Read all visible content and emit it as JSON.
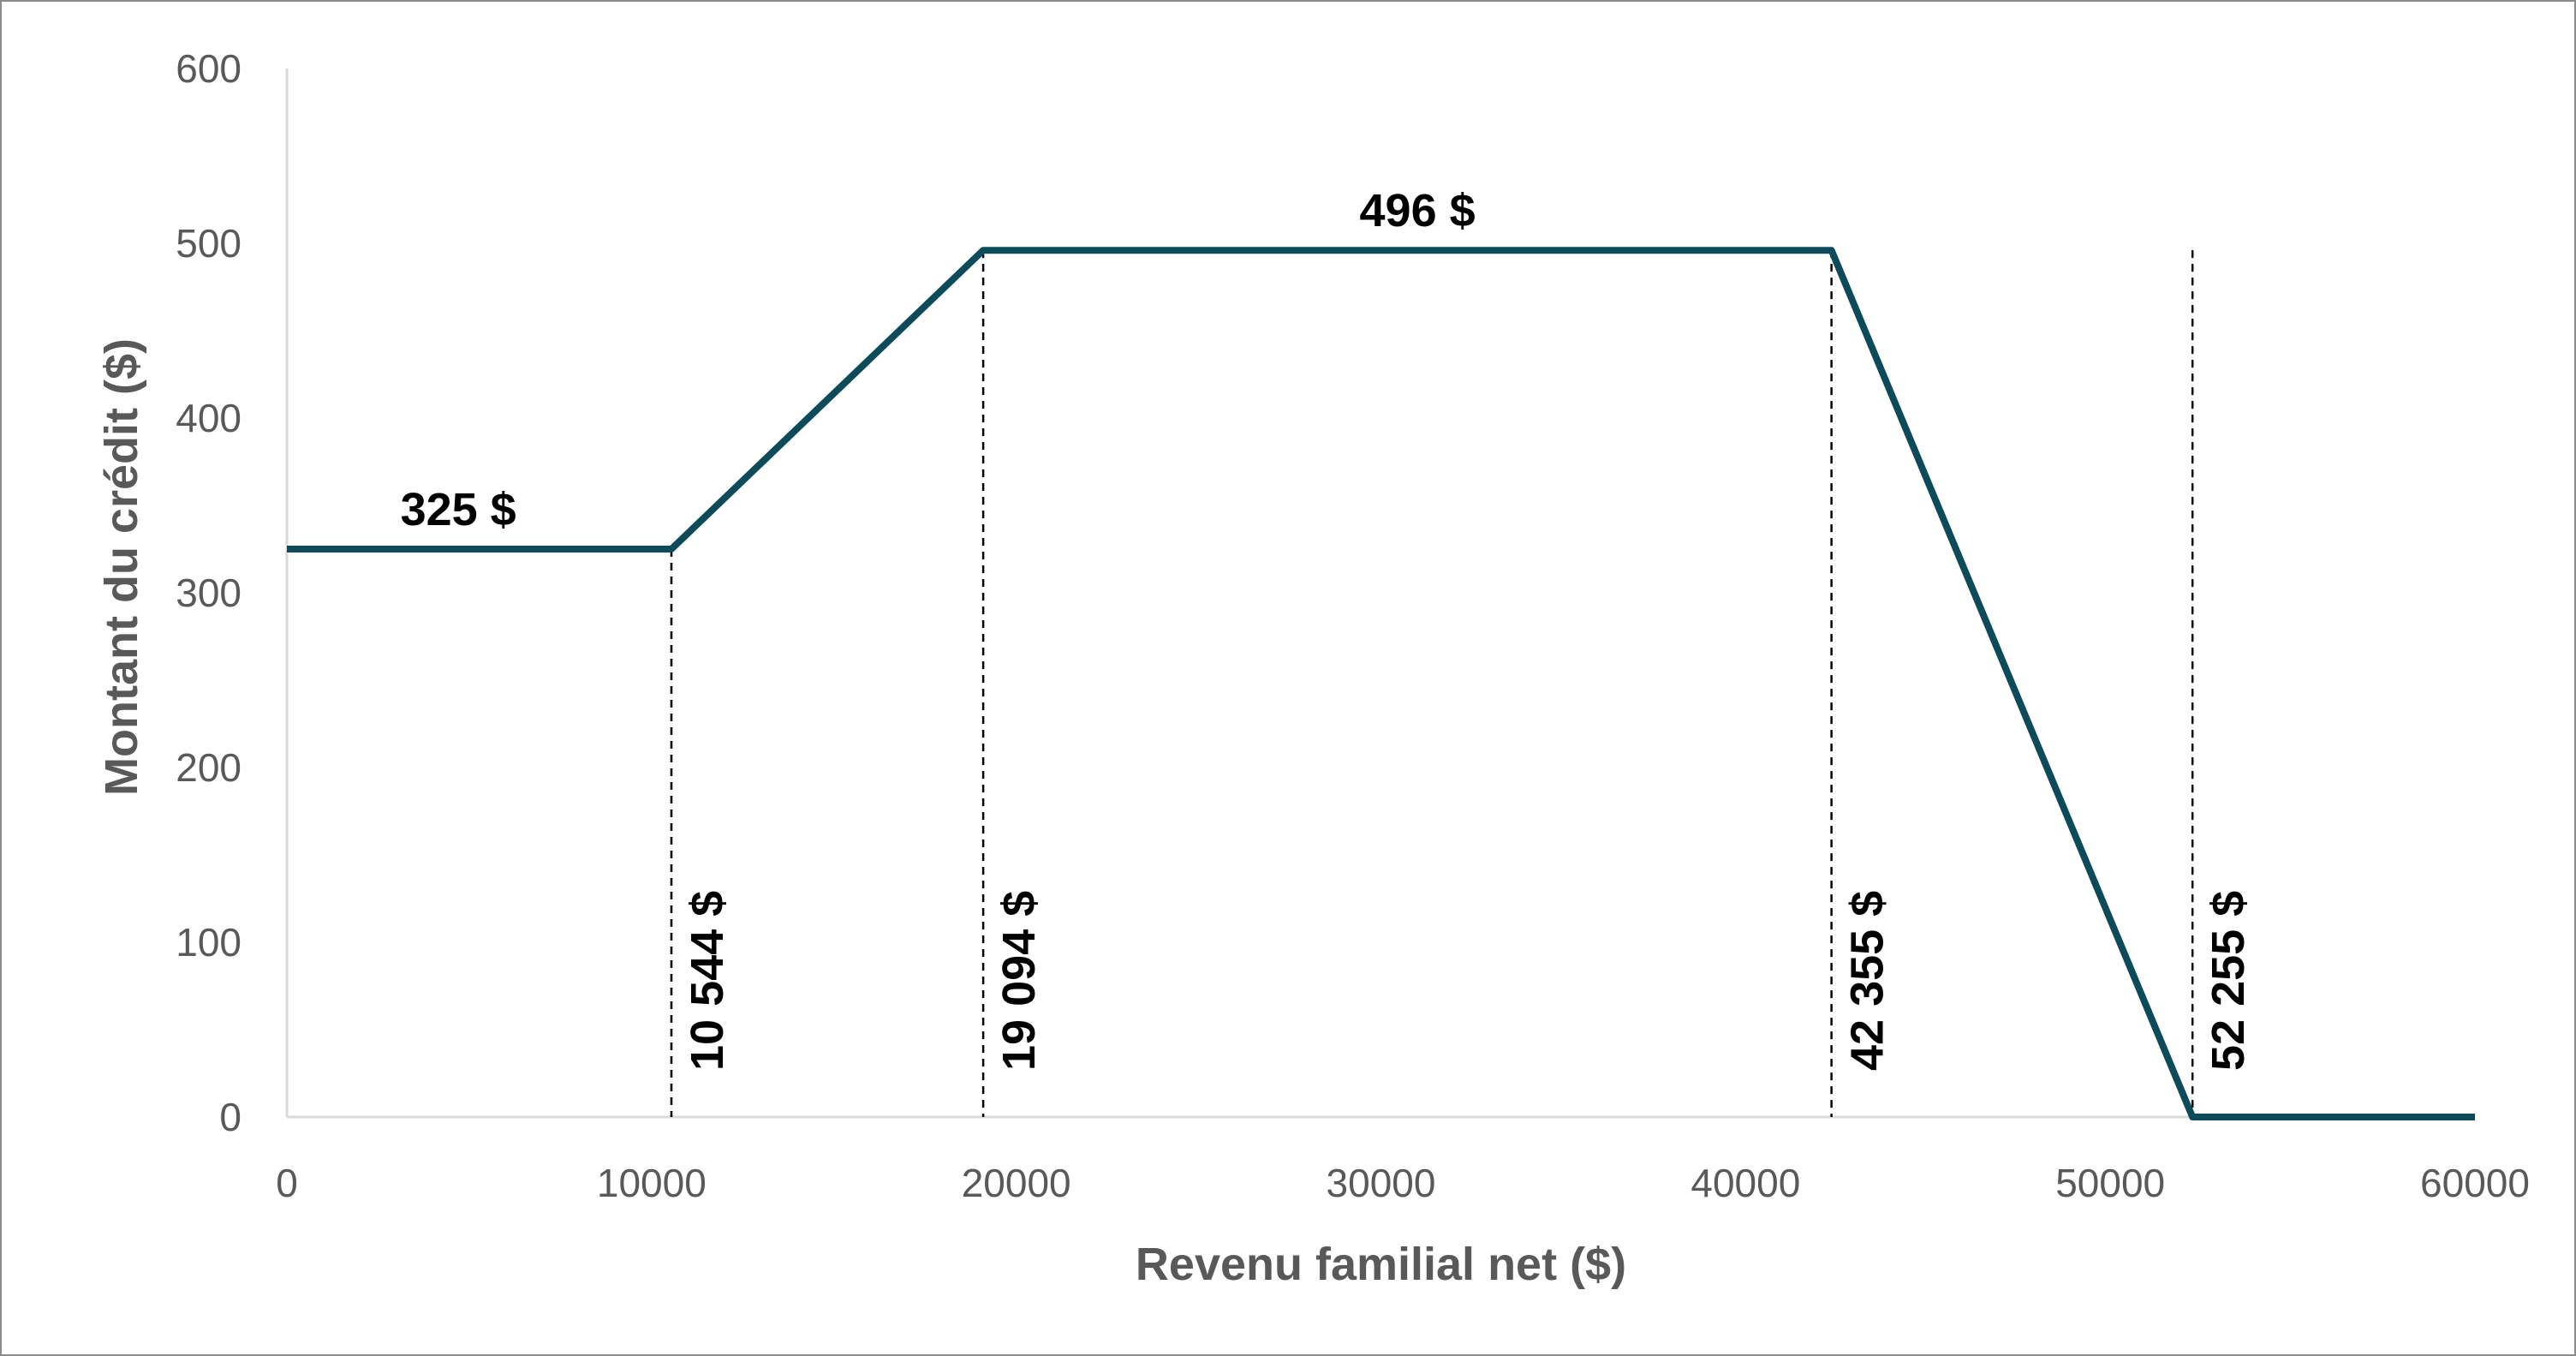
{
  "chart_data": {
    "type": "line",
    "title": "",
    "xlabel": "Revenu familial net ($)",
    "ylabel": "Montant du crédit ($)",
    "xlim": [
      0,
      60000
    ],
    "ylim": [
      0,
      600
    ],
    "x_ticks": [
      "0",
      "10000",
      "20000",
      "30000",
      "40000",
      "50000",
      "60000"
    ],
    "y_ticks": [
      "0",
      "100",
      "200",
      "300",
      "400",
      "500",
      "600"
    ],
    "grid": false,
    "legend": "none",
    "series": [
      {
        "color": "#0e4b5a",
        "points": [
          {
            "x": 0,
            "y": 325
          },
          {
            "x": 10544,
            "y": 325
          },
          {
            "x": 19094,
            "y": 496
          },
          {
            "x": 42355,
            "y": 496
          },
          {
            "x": 52255,
            "y": 0
          },
          {
            "x": 60000,
            "y": 0
          }
        ]
      }
    ],
    "reference_lines": [
      {
        "x": 10544,
        "label": "10 544 $"
      },
      {
        "x": 19094,
        "label": "19 094 $"
      },
      {
        "x": 42355,
        "label": "42 355 $"
      },
      {
        "x": 52255,
        "label": "52 255 $"
      }
    ],
    "annotations": [
      {
        "text": "325 $",
        "x": 4700,
        "y": 325
      },
      {
        "text": "496 $",
        "x": 31000,
        "y": 496
      }
    ]
  }
}
